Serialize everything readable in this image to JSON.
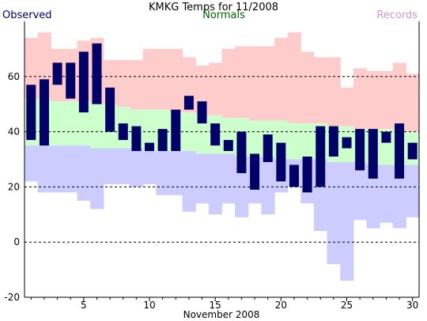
{
  "chart_data": {
    "type": "bar",
    "title": "KMKG Temps for 11/2008",
    "xlabel": "November 2008",
    "ylabel": "",
    "legend": {
      "observed": "Observed",
      "normals": "Normals",
      "records": "Records"
    },
    "colors": {
      "observed": "#000066",
      "normals": "#ccffcc",
      "records_high": "#ffcccc",
      "records_low": "#ccccff",
      "legend_observed": "#000066",
      "legend_normals": "#006600",
      "legend_records": "#cc99cc"
    },
    "grid": "dashed at labeled y ticks",
    "xlim": [
      0.5,
      30.5
    ],
    "ylim": [
      -20,
      80
    ],
    "x_ticks": [
      5,
      10,
      15,
      20,
      25,
      30
    ],
    "y_ticks": [
      -20,
      0,
      20,
      40,
      60
    ],
    "days": [
      1,
      2,
      3,
      4,
      5,
      6,
      7,
      8,
      9,
      10,
      11,
      12,
      13,
      14,
      15,
      16,
      17,
      18,
      19,
      20,
      21,
      22,
      23,
      24,
      25,
      26,
      27,
      28,
      29,
      30
    ],
    "series": [
      {
        "name": "Observed",
        "high": [
          57,
          59,
          65,
          65,
          69,
          72,
          56,
          43,
          42,
          36,
          41,
          48,
          53,
          51,
          43,
          37,
          40,
          32,
          39,
          36,
          28,
          31,
          42,
          42,
          38,
          41,
          41,
          40,
          43,
          36
        ],
        "low": [
          37,
          35,
          57,
          52,
          47,
          50,
          40,
          37,
          33,
          33,
          33,
          33,
          48,
          43,
          35,
          33,
          25,
          19,
          29,
          22,
          20,
          18,
          20,
          31,
          34,
          26,
          23,
          36,
          23,
          30
        ]
      },
      {
        "name": "Normals",
        "high": [
          52,
          52,
          51,
          51,
          51,
          50,
          50,
          49,
          48,
          48,
          48,
          47,
          47,
          46,
          46,
          45,
          45,
          44,
          44,
          44,
          43,
          43,
          43,
          42,
          42,
          41,
          41,
          41,
          40,
          40
        ],
        "low": [
          35,
          35,
          35,
          35,
          35,
          34,
          34,
          34,
          34,
          33,
          33,
          33,
          33,
          32,
          32,
          32,
          31,
          31,
          31,
          30,
          30,
          30,
          30,
          29,
          29,
          29,
          28,
          28,
          28,
          28
        ]
      },
      {
        "name": "Records",
        "high": [
          74,
          76,
          70,
          70,
          73,
          74,
          66,
          66,
          66,
          70,
          70,
          70,
          67,
          64,
          65,
          70,
          71,
          71,
          71,
          74,
          76,
          69,
          67,
          67,
          56,
          63,
          62,
          62,
          65,
          61
        ],
        "low": [
          22,
          18,
          18,
          18,
          15,
          12,
          21,
          21,
          20,
          21,
          17,
          17,
          11,
          14,
          10,
          14,
          9,
          14,
          10,
          18,
          20,
          14,
          4,
          -8,
          -14,
          8,
          5,
          7,
          5,
          9
        ]
      }
    ]
  }
}
